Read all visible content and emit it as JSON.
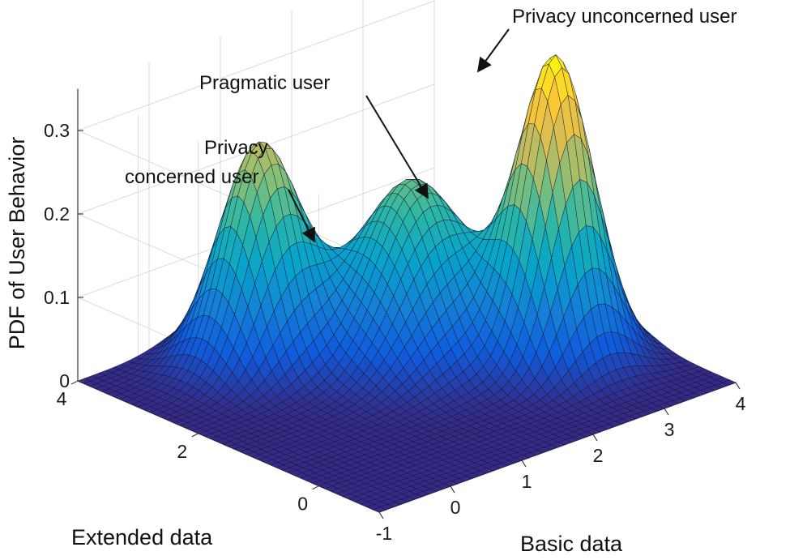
{
  "chart_data": {
    "type": "surface",
    "zlabel": "PDF of User Behavior",
    "xlabel": "Basic data",
    "ylabel": "Extended data",
    "xlim": [
      -1,
      4
    ],
    "ylim": [
      -1,
      4
    ],
    "zlim": [
      0,
      0.35
    ],
    "xticks": [
      "-1",
      "0",
      "1",
      "2",
      "3",
      "4"
    ],
    "yticks": [
      "0",
      "2",
      "4"
    ],
    "zticks": [
      "0",
      "0.1",
      "0.2",
      "0.3"
    ],
    "grid": true,
    "colormap": "parula",
    "components": [
      {
        "name": "Privacy concerned user",
        "mean": [
          0.7,
          3.0
        ],
        "std": 0.45,
        "peak": 0.26
      },
      {
        "name": "Pragmatic user",
        "mean": [
          2.0,
          2.0
        ],
        "std": 0.6,
        "peak": 0.21
      },
      {
        "name": "Privacy unconcerned user",
        "mean": [
          3.0,
          0.8
        ],
        "std": 0.42,
        "peak": 0.36
      }
    ],
    "annotations": [
      {
        "text": "Privacy unconcerned user"
      },
      {
        "text": "Pragmatic  user"
      },
      {
        "lines": [
          "Privacy",
          "concerned user"
        ]
      }
    ]
  }
}
